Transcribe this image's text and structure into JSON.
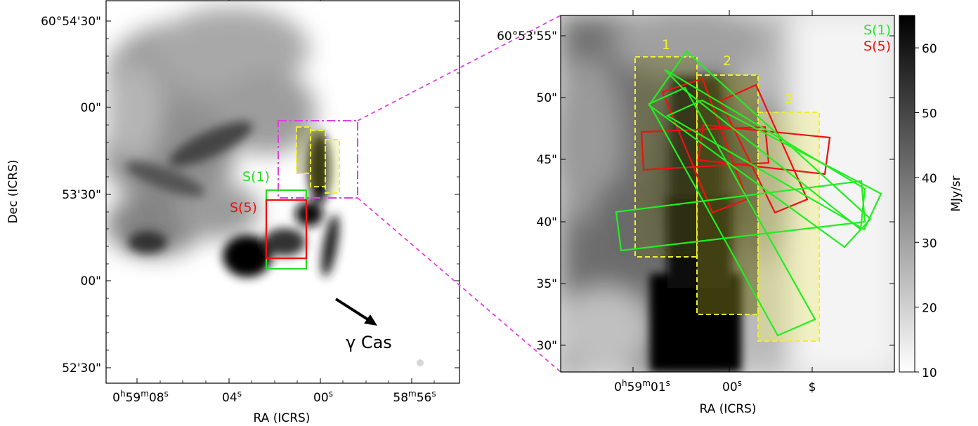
{
  "chart_data": [
    {
      "type": "heatmap",
      "panel": "left",
      "xlabel": "RA (ICRS)",
      "ylabel": "Dec (ICRS)",
      "x_tick_labels": [
        {
          "main": "0",
          "sup1": "h",
          "mid": "59",
          "sup2": "m",
          "tail": "08",
          "sup3": "s"
        },
        {
          "main": "04",
          "sup1": "s"
        },
        {
          "main": "00",
          "sup1": "s"
        },
        {
          "main": "58",
          "sup1": "m",
          "mid": "56",
          "sup2": "s"
        }
      ],
      "y_tick_labels": [
        "60°54'30\"",
        "00\"",
        "53'30\"",
        "00\"",
        "52'30\""
      ],
      "series": [
        {
          "name": "S(1)",
          "color": "#22dd22"
        },
        {
          "name": "S(5)",
          "color": "#ee1111"
        }
      ],
      "annotation": "γ Cas",
      "zoom_box_color": "#e040e0",
      "aperture_color": "#eeee33"
    },
    {
      "type": "heatmap",
      "panel": "right",
      "xlabel": "RA (ICRS)",
      "x_tick_labels": [
        {
          "main": "0",
          "sup1": "h",
          "mid": "59",
          "sup2": "m",
          "tail": "01",
          "sup3": "s"
        },
        {
          "main": "00",
          "sup1": "s"
        },
        {
          "main": "$"
        }
      ],
      "y_tick_labels": [
        "60°53'55\"",
        "50\"",
        "45\"",
        "40\"",
        "35\"",
        "30\""
      ],
      "aperture_labels": [
        "1",
        "2",
        "3"
      ],
      "legend": [
        {
          "name": "S(1)",
          "color": "#22ee22"
        },
        {
          "name": "S(5)",
          "color": "#ee1111"
        }
      ],
      "colorbar": {
        "label": "MJy/sr",
        "ticks": [
          10,
          20,
          30,
          40,
          50,
          60
        ],
        "range": [
          10,
          65
        ],
        "colormap": "gray_r"
      }
    }
  ]
}
